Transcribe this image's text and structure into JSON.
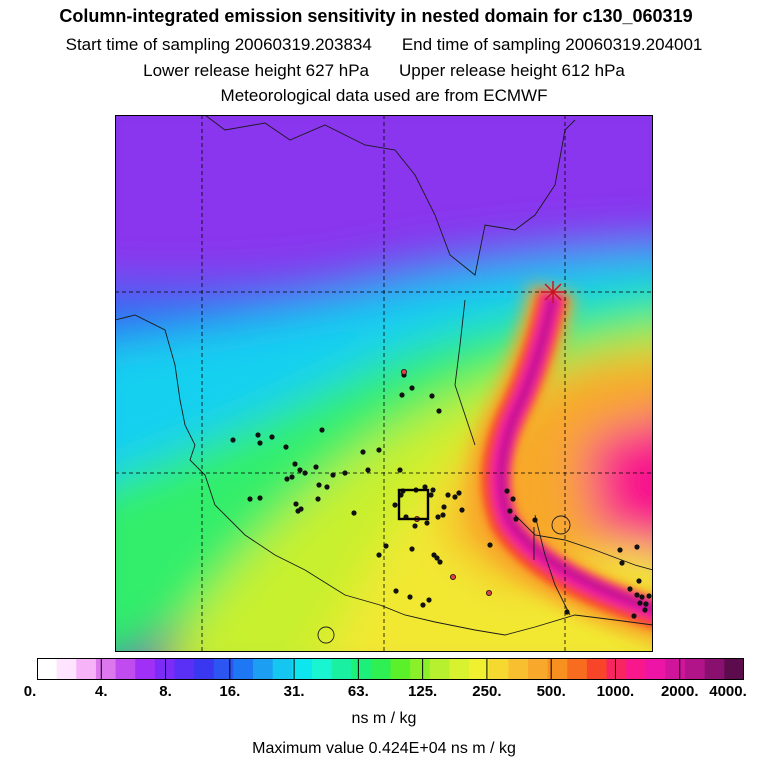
{
  "title": {
    "line1": "Column-integrated emission sensitivity in nested domain for c130_060319",
    "start_label": "Start time of sampling 20060319.203834",
    "end_label": "End time of sampling 20060319.204001",
    "lower_label": "Lower release height  627 hPa",
    "upper_label": "Upper release height  612 hPa",
    "met_label": "Meteorological data used are from ECMWF"
  },
  "chart_data": {
    "type": "heatmap",
    "title": "Column-integrated emission sensitivity in nested domain for c130_060319",
    "colorbar": {
      "tick_labels": [
        "0.",
        "4.",
        "8.",
        "16.",
        "31.",
        "63.",
        "125.",
        "250.",
        "500.",
        "1000.",
        "2000.",
        "4000."
      ],
      "units": "ns m / kg",
      "bins": [
        "#ffffff",
        "#ffe4ff",
        "#f7b3f7",
        "#dd77ee",
        "#c04cf0",
        "#a030f5",
        "#7d2cf8",
        "#5a2ff6",
        "#3a37f0",
        "#2c55f2",
        "#1e78f4",
        "#1c9ef2",
        "#14c6f0",
        "#0de6ef",
        "#19f5d0",
        "#19f0a2",
        "#1cf07a",
        "#2ef052",
        "#5af02a",
        "#8af02a",
        "#b6f02e",
        "#d8f230",
        "#f0f030",
        "#f5d830",
        "#f8c030",
        "#f8a82a",
        "#f89020",
        "#f86c20",
        "#f84428",
        "#f82660",
        "#f8188c",
        "#ee14a6",
        "#d0149c",
        "#b01488",
        "#8a1070",
        "#5c0c4c"
      ]
    },
    "maximum": "Maximum value  0.424E+04 ns m / kg"
  }
}
